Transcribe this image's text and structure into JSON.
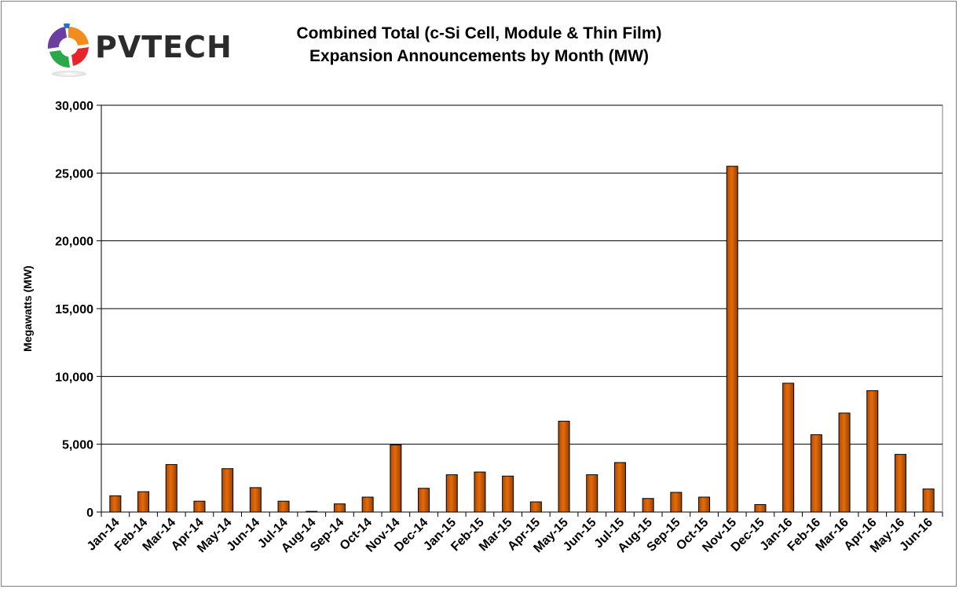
{
  "logo": {
    "text": "PVTECH"
  },
  "chart_data": {
    "type": "bar",
    "title": "Combined Total (c-Si Cell, Module & Thin Film)",
    "subtitle": "Expansion Announcements by Month (MW)",
    "xlabel": "",
    "ylabel": "Megawatts (MW)",
    "ylim": [
      0,
      30000
    ],
    "yticks": [
      "0",
      "5,000",
      "10,000",
      "15,000",
      "20,000",
      "25,000",
      "30,000"
    ],
    "grid": true,
    "bar_color": "#e36c0a",
    "categories": [
      "Jan-14",
      "Feb-14",
      "Mar-14",
      "Apr-14",
      "May-14",
      "Jun-14",
      "Jul-14",
      "Aug-14",
      "Sep-14",
      "Oct-14",
      "Nov-14",
      "Dec-14",
      "Jan-15",
      "Feb-15",
      "Mar-15",
      "Apr-15",
      "May-15",
      "Jun-15",
      "Jul-15",
      "Aug-15",
      "Sep-15",
      "Oct-15",
      "Nov-15",
      "Dec-15",
      "Jan-16",
      "Feb-16",
      "Mar-16",
      "Apr-16",
      "May-16",
      "Jun-16"
    ],
    "values": [
      1200,
      1500,
      3500,
      800,
      3200,
      1800,
      800,
      50,
      600,
      1100,
      4950,
      1750,
      2750,
      2950,
      2650,
      750,
      6700,
      2750,
      3650,
      1000,
      1450,
      1100,
      25500,
      550,
      9500,
      5700,
      7300,
      8950,
      4250,
      1700
    ]
  }
}
